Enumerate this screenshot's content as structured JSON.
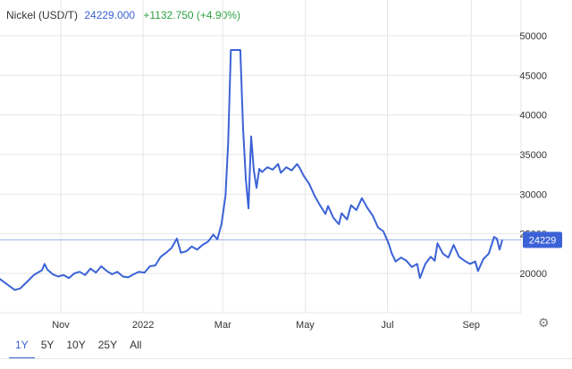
{
  "header": {
    "name": "Nickel (USD/T)",
    "price": "24229.000",
    "change": "+1132.750 (+4.90%)"
  },
  "ranges": [
    "1Y",
    "5Y",
    "10Y",
    "25Y",
    "All"
  ],
  "active_range": "1Y",
  "settings_icon": "gear-icon",
  "colors": {
    "line": "#3b62d6",
    "positive": "#2ea043",
    "grid": "#e6e6e6",
    "badge": "#3b62d6"
  },
  "chart_data": {
    "type": "line",
    "title": "Nickel (USD/T)",
    "xlabel": "",
    "ylabel": "",
    "ylim": [
      15000,
      51000
    ],
    "yticks": [
      20000,
      25000,
      30000,
      35000,
      40000,
      45000,
      50000
    ],
    "y_axis_position": "right",
    "xticks": [
      {
        "label": "Nov",
        "date": "2021-11-01"
      },
      {
        "label": "2022",
        "date": "2022-01-01"
      },
      {
        "label": "Mar",
        "date": "2022-03-01"
      },
      {
        "label": "May",
        "date": "2022-05-01"
      },
      {
        "label": "Jul",
        "date": "2022-07-01"
      },
      {
        "label": "Sep",
        "date": "2022-09-01"
      }
    ],
    "last_value": 24229,
    "last_value_label": "24229",
    "grid": true,
    "series": [
      {
        "values": [
          [
            "2021-09-13",
            19000
          ],
          [
            "2021-09-16",
            19400
          ],
          [
            "2021-09-20",
            18900
          ],
          [
            "2021-09-24",
            18400
          ],
          [
            "2021-09-28",
            17900
          ],
          [
            "2021-10-02",
            18100
          ],
          [
            "2021-10-05",
            18600
          ],
          [
            "2021-10-08",
            19100
          ],
          [
            "2021-10-12",
            19800
          ],
          [
            "2021-10-15",
            20100
          ],
          [
            "2021-10-18",
            20400
          ],
          [
            "2021-10-20",
            21200
          ],
          [
            "2021-10-22",
            20500
          ],
          [
            "2021-10-26",
            19900
          ],
          [
            "2021-10-30",
            19600
          ],
          [
            "2021-11-03",
            19800
          ],
          [
            "2021-11-07",
            19400
          ],
          [
            "2021-11-11",
            20000
          ],
          [
            "2021-11-15",
            20200
          ],
          [
            "2021-11-19",
            19800
          ],
          [
            "2021-11-23",
            20600
          ],
          [
            "2021-11-27",
            20100
          ],
          [
            "2021-12-01",
            20900
          ],
          [
            "2021-12-05",
            20300
          ],
          [
            "2021-12-09",
            19900
          ],
          [
            "2021-12-13",
            20200
          ],
          [
            "2021-12-17",
            19600
          ],
          [
            "2021-12-21",
            19500
          ],
          [
            "2021-12-25",
            19900
          ],
          [
            "2021-12-29",
            20200
          ],
          [
            "2022-01-02",
            20100
          ],
          [
            "2022-01-06",
            20900
          ],
          [
            "2022-01-10",
            21000
          ],
          [
            "2022-01-14",
            22100
          ],
          [
            "2022-01-18",
            22600
          ],
          [
            "2022-01-22",
            23200
          ],
          [
            "2022-01-26",
            24400
          ],
          [
            "2022-01-29",
            22600
          ],
          [
            "2022-02-02",
            22800
          ],
          [
            "2022-02-06",
            23400
          ],
          [
            "2022-02-10",
            23000
          ],
          [
            "2022-02-14",
            23600
          ],
          [
            "2022-02-18",
            24000
          ],
          [
            "2022-02-22",
            24900
          ],
          [
            "2022-02-25",
            24300
          ],
          [
            "2022-02-28",
            26200
          ],
          [
            "2022-03-03",
            29800
          ],
          [
            "2022-03-05",
            36500
          ],
          [
            "2022-03-07",
            48200
          ],
          [
            "2022-03-14",
            48200
          ],
          [
            "2022-03-16",
            38500
          ],
          [
            "2022-03-18",
            32000
          ],
          [
            "2022-03-20",
            28200
          ],
          [
            "2022-03-22",
            37300
          ],
          [
            "2022-03-24",
            33000
          ],
          [
            "2022-03-26",
            30800
          ],
          [
            "2022-03-28",
            33200
          ],
          [
            "2022-03-30",
            32800
          ],
          [
            "2022-04-03",
            33400
          ],
          [
            "2022-04-07",
            33100
          ],
          [
            "2022-04-11",
            33800
          ],
          [
            "2022-04-13",
            32700
          ],
          [
            "2022-04-17",
            33400
          ],
          [
            "2022-04-21",
            33000
          ],
          [
            "2022-04-25",
            33800
          ],
          [
            "2022-04-27",
            33300
          ],
          [
            "2022-04-30",
            32300
          ],
          [
            "2022-05-04",
            31300
          ],
          [
            "2022-05-08",
            29800
          ],
          [
            "2022-05-12",
            28600
          ],
          [
            "2022-05-16",
            27500
          ],
          [
            "2022-05-18",
            28500
          ],
          [
            "2022-05-22",
            27000
          ],
          [
            "2022-05-26",
            26200
          ],
          [
            "2022-05-28",
            27600
          ],
          [
            "2022-06-01",
            26800
          ],
          [
            "2022-06-04",
            28600
          ],
          [
            "2022-06-08",
            28000
          ],
          [
            "2022-06-12",
            29500
          ],
          [
            "2022-06-16",
            28300
          ],
          [
            "2022-06-20",
            27300
          ],
          [
            "2022-06-24",
            25800
          ],
          [
            "2022-06-28",
            25300
          ],
          [
            "2022-07-02",
            23700
          ],
          [
            "2022-07-04",
            22600
          ],
          [
            "2022-07-07",
            21500
          ],
          [
            "2022-07-11",
            22000
          ],
          [
            "2022-07-15",
            21600
          ],
          [
            "2022-07-19",
            20800
          ],
          [
            "2022-07-23",
            21200
          ],
          [
            "2022-07-25",
            19400
          ],
          [
            "2022-07-29",
            21200
          ],
          [
            "2022-08-02",
            22100
          ],
          [
            "2022-08-05",
            21600
          ],
          [
            "2022-08-07",
            23800
          ],
          [
            "2022-08-11",
            22500
          ],
          [
            "2022-08-15",
            22000
          ],
          [
            "2022-08-19",
            23600
          ],
          [
            "2022-08-23",
            22100
          ],
          [
            "2022-08-27",
            21600
          ],
          [
            "2022-08-31",
            21200
          ],
          [
            "2022-09-04",
            21500
          ],
          [
            "2022-09-06",
            20300
          ],
          [
            "2022-09-10",
            21800
          ],
          [
            "2022-09-14",
            22500
          ],
          [
            "2022-09-18",
            24600
          ],
          [
            "2022-09-20",
            24400
          ],
          [
            "2022-09-22",
            23000
          ],
          [
            "2022-09-24",
            24229
          ]
        ]
      }
    ]
  }
}
